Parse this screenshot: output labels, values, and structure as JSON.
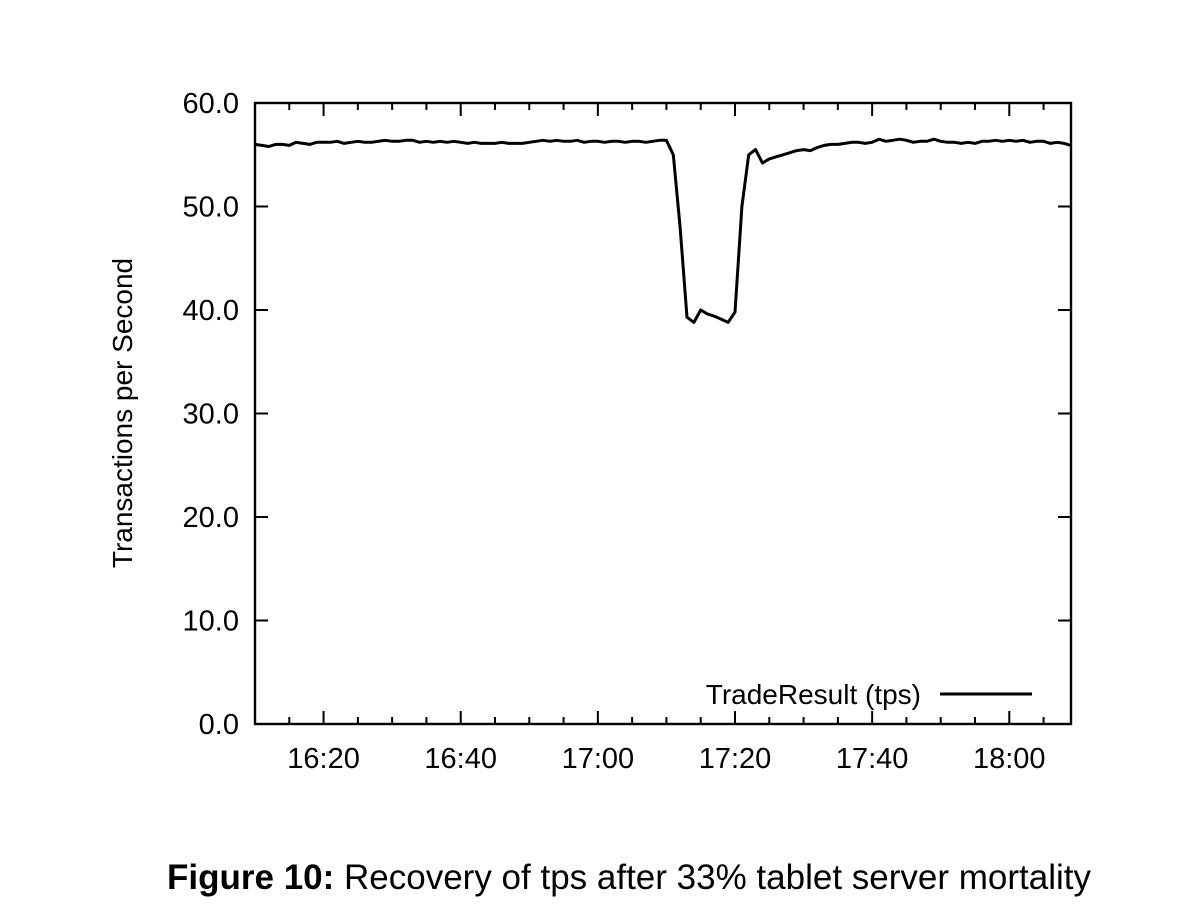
{
  "chart_data": {
    "type": "line",
    "ylabel": "Transactions per Second",
    "ylim": [
      0,
      60
    ],
    "yticks": [
      "0.0",
      "10.0",
      "20.0",
      "30.0",
      "40.0",
      "50.0",
      "60.0"
    ],
    "xlim": [
      "16:10",
      "18:09"
    ],
    "xticks": [
      "16:20",
      "16:40",
      "17:00",
      "17:20",
      "17:40",
      "18:00"
    ],
    "grid": false,
    "legend_position": "bottom-right",
    "series": [
      {
        "name": "TradeResult (tps)",
        "x": [
          "16:10",
          "16:11",
          "16:12",
          "16:13",
          "16:14",
          "16:15",
          "16:16",
          "16:17",
          "16:18",
          "16:19",
          "16:20",
          "16:21",
          "16:22",
          "16:23",
          "16:24",
          "16:25",
          "16:26",
          "16:27",
          "16:28",
          "16:29",
          "16:30",
          "16:31",
          "16:32",
          "16:33",
          "16:34",
          "16:35",
          "16:36",
          "16:37",
          "16:38",
          "16:39",
          "16:40",
          "16:41",
          "16:42",
          "16:43",
          "16:44",
          "16:45",
          "16:46",
          "16:47",
          "16:48",
          "16:49",
          "16:50",
          "16:51",
          "16:52",
          "16:53",
          "16:54",
          "16:55",
          "16:56",
          "16:57",
          "16:58",
          "16:59",
          "17:00",
          "17:01",
          "17:02",
          "17:03",
          "17:04",
          "17:05",
          "17:06",
          "17:07",
          "17:08",
          "17:09",
          "17:10",
          "17:11",
          "17:12",
          "17:13",
          "17:14",
          "17:15",
          "17:16",
          "17:17",
          "17:18",
          "17:19",
          "17:20",
          "17:21",
          "17:22",
          "17:23",
          "17:24",
          "17:25",
          "17:26",
          "17:27",
          "17:28",
          "17:29",
          "17:30",
          "17:31",
          "17:32",
          "17:33",
          "17:34",
          "17:35",
          "17:36",
          "17:37",
          "17:38",
          "17:39",
          "17:40",
          "17:41",
          "17:42",
          "17:43",
          "17:44",
          "17:45",
          "17:46",
          "17:47",
          "17:48",
          "17:49",
          "17:50",
          "17:51",
          "17:52",
          "17:53",
          "17:54",
          "17:55",
          "17:56",
          "17:57",
          "17:58",
          "17:59",
          "18:00",
          "18:01",
          "18:02",
          "18:03",
          "18:04",
          "18:05",
          "18:06",
          "18:07",
          "18:08",
          "18:09"
        ],
        "values": [
          56.0,
          55.9,
          55.8,
          56.0,
          56.0,
          55.9,
          56.2,
          56.1,
          56.0,
          56.2,
          56.2,
          56.2,
          56.3,
          56.1,
          56.2,
          56.3,
          56.2,
          56.2,
          56.3,
          56.4,
          56.3,
          56.3,
          56.4,
          56.4,
          56.2,
          56.3,
          56.2,
          56.3,
          56.2,
          56.3,
          56.2,
          56.1,
          56.2,
          56.1,
          56.1,
          56.1,
          56.2,
          56.1,
          56.1,
          56.1,
          56.2,
          56.3,
          56.4,
          56.3,
          56.4,
          56.3,
          56.3,
          56.4,
          56.2,
          56.3,
          56.3,
          56.2,
          56.3,
          56.3,
          56.2,
          56.3,
          56.3,
          56.2,
          56.3,
          56.4,
          56.4,
          55.0,
          48.0,
          39.3,
          38.8,
          40.0,
          39.6,
          39.4,
          39.1,
          38.8,
          39.8,
          50.0,
          55.0,
          55.5,
          54.2,
          54.6,
          54.8,
          55.0,
          55.2,
          55.4,
          55.5,
          55.4,
          55.7,
          55.9,
          56.0,
          56.0,
          56.1,
          56.2,
          56.2,
          56.1,
          56.2,
          56.5,
          56.3,
          56.4,
          56.5,
          56.4,
          56.2,
          56.3,
          56.3,
          56.5,
          56.3,
          56.2,
          56.2,
          56.1,
          56.2,
          56.1,
          56.3,
          56.3,
          56.4,
          56.3,
          56.4,
          56.3,
          56.4,
          56.2,
          56.3,
          56.3,
          56.1,
          56.2,
          56.1,
          55.9
        ]
      }
    ]
  },
  "caption": {
    "label": "Figure 10:",
    "text": " Recovery of tps after 33% tablet server mortality"
  }
}
